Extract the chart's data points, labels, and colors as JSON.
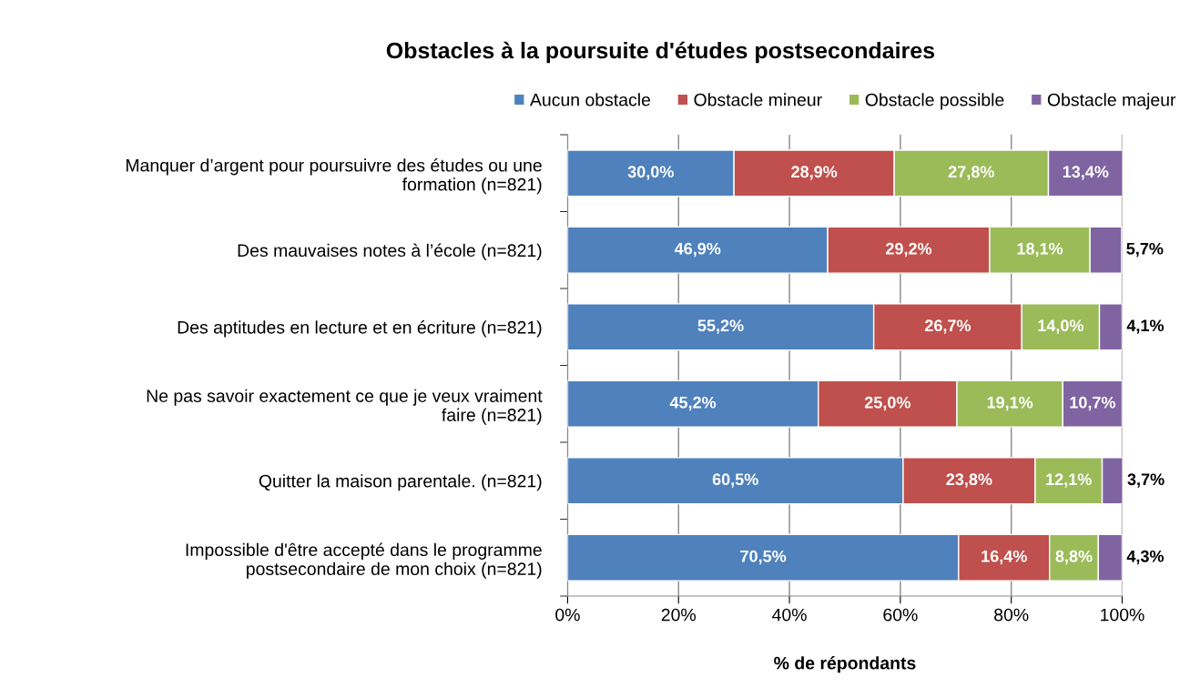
{
  "chart_data": {
    "type": "bar",
    "orientation": "horizontal",
    "stacked": true,
    "title": "Obstacles à la poursuite d'études postsecondaires",
    "xlabel": "% de répondants",
    "categories": [
      "Manquer d’argent pour poursuivre des études ou une\nformation (n=821)",
      "Des mauvaises notes à l’école (n=821)",
      "Des aptitudes en lecture et en écriture (n=821)",
      "Ne pas savoir exactement ce que je veux vraiment\nfaire (n=821)",
      "Quitter la maison parentale. (n=821)",
      "Impossible d'être accepté dans le programme\npostsecondaire de mon choix (n=821)"
    ],
    "series": [
      {
        "name": "Aucun obstacle",
        "color": "#4f81bd",
        "values": [
          30.0,
          46.9,
          55.2,
          45.2,
          60.5,
          70.5
        ],
        "value_labels": [
          "30,0%",
          "46,9%",
          "55,2%",
          "45,2%",
          "60,5%",
          "70,5%"
        ]
      },
      {
        "name": "Obstacle mineur",
        "color": "#c0504d",
        "values": [
          28.9,
          29.2,
          26.7,
          25.0,
          23.8,
          16.4
        ],
        "value_labels": [
          "28,9%",
          "29,2%",
          "26,7%",
          "25,0%",
          "23,8%",
          "16,4%"
        ]
      },
      {
        "name": "Obstacle possible",
        "color": "#9bbb59",
        "values": [
          27.8,
          18.1,
          14.0,
          19.1,
          12.1,
          8.8
        ],
        "value_labels": [
          "27,8%",
          "18,1%",
          "14,0%",
          "19,1%",
          "12,1%",
          "8,8%"
        ]
      },
      {
        "name": "Obstacle majeur",
        "color": "#8064a2",
        "values": [
          13.4,
          5.7,
          4.1,
          10.7,
          3.7,
          4.3
        ],
        "value_labels": [
          "13,4%",
          "5,7%",
          "4,1%",
          "10,7%",
          "3,7%",
          "4,3%"
        ]
      }
    ],
    "xlim": [
      0,
      100
    ],
    "xticks": [
      {
        "value": 0,
        "label": "0%"
      },
      {
        "value": 20,
        "label": "20%"
      },
      {
        "value": 40,
        "label": "40%"
      },
      {
        "value": 60,
        "label": "60%"
      },
      {
        "value": 80,
        "label": "80%"
      },
      {
        "value": 100,
        "label": "100%"
      }
    ],
    "grid": "x",
    "legend": "top"
  }
}
